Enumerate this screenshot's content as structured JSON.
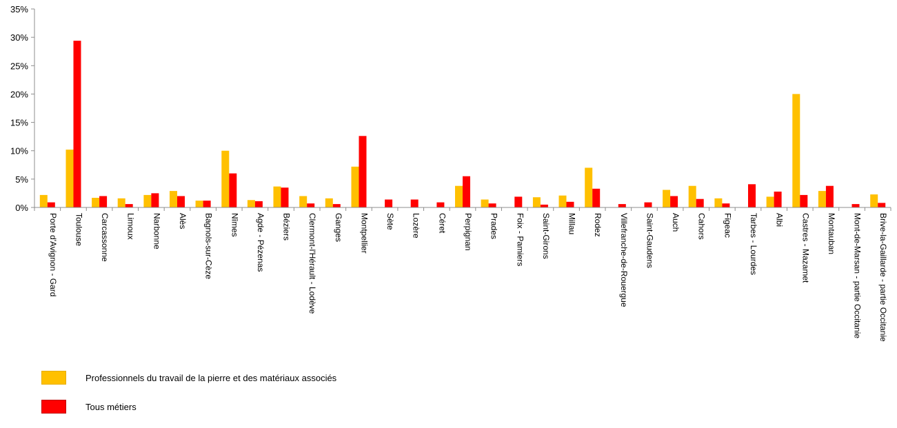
{
  "chart_data": {
    "type": "bar",
    "title": "",
    "xlabel": "",
    "ylabel": "",
    "ylim": [
      0,
      35
    ],
    "yticks": [
      "0%",
      "5%",
      "10%",
      "15%",
      "20%",
      "25%",
      "30%",
      "35%"
    ],
    "grid": false,
    "legend_position": "bottom-left",
    "categories": [
      "Porte d'Avignon - Gard",
      "Toulouse",
      "Carcassonne",
      "Limoux",
      "Narbonne",
      "Alès",
      "Bagnols-sur-Cèze",
      "Nîmes",
      "Agde - Pézenas",
      "Béziers",
      "Clermont-l'Hérault - Lodève",
      "Ganges",
      "Montpellier",
      "Sète",
      "Lozère",
      "Céret",
      "Perpignan",
      "Prades",
      "Foix - Pamiers",
      "Saint-Girons",
      "Millau",
      "Rodez",
      "Villefranche-de-Rouergue",
      "Saint-Gaudens",
      "Auch",
      "Cahors",
      "Figeac",
      "Tarbes - Lourdes",
      "Albi",
      "Castres - Mazamet",
      "Montauban",
      "Mont-de-Marsan - partie Occitanie",
      "Brive-la-Gaillarde - partie Occitanie"
    ],
    "series": [
      {
        "name": "Professionnels du travail de la pierre et des matériaux associés",
        "color": "#FFC000",
        "values": [
          2.2,
          10.2,
          1.7,
          1.6,
          2.2,
          2.9,
          1.2,
          10.0,
          1.3,
          3.7,
          2.0,
          1.6,
          7.2,
          0,
          0,
          0,
          3.8,
          1.4,
          0,
          1.8,
          2.1,
          7.0,
          0,
          0,
          3.1,
          3.8,
          1.6,
          0,
          1.9,
          20.0,
          2.9,
          0,
          2.3
        ]
      },
      {
        "name": "Tous métiers",
        "color": "#FF0000",
        "values": [
          0.9,
          29.4,
          2.0,
          0.6,
          2.5,
          2.0,
          1.2,
          6.0,
          1.1,
          3.5,
          0.7,
          0.6,
          12.6,
          1.4,
          1.4,
          0.9,
          5.5,
          0.7,
          1.9,
          0.5,
          1.0,
          3.3,
          0.6,
          0.9,
          2.0,
          1.5,
          0.7,
          4.1,
          2.8,
          2.2,
          3.8,
          0.6,
          0.8
        ]
      }
    ]
  }
}
